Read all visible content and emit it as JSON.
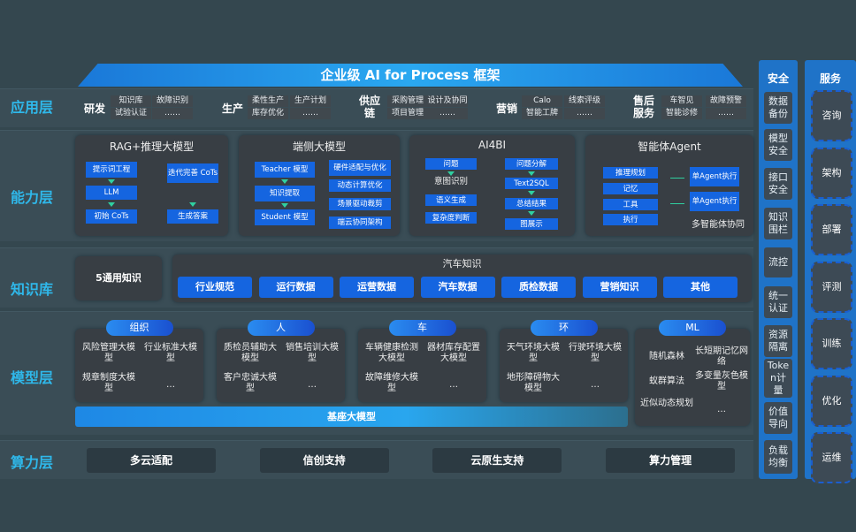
{
  "title": "企业级 AI for Process 框架",
  "layers": [
    "应用层",
    "能力层",
    "知识库",
    "模型层",
    "算力层"
  ],
  "app": [
    {
      "name": "研发",
      "items": [
        "知识库",
        "故障识别",
        "试验认证",
        "……"
      ]
    },
    {
      "name": "生产",
      "items": [
        "柔性生产",
        "生产计划",
        "库存优化",
        "……"
      ]
    },
    {
      "name": "供应链",
      "items": [
        "采购管理",
        "设计及协同",
        "项目管理",
        "……"
      ]
    },
    {
      "name": "营销",
      "items": [
        "Calo",
        "线索评级",
        "智能工牌",
        "……"
      ]
    },
    {
      "name": "售后服务",
      "items": [
        "车智见",
        "故障预警",
        "智能诊修",
        "……"
      ]
    }
  ],
  "capability": {
    "rag": {
      "title": "RAG+推理大模型",
      "items": [
        "提示词工程",
        "LLM",
        "初始 CoTs",
        "迭代完善 CoTs",
        "生成答案"
      ]
    },
    "edge": {
      "title": "端侧大模型",
      "left": [
        "Teacher 模型",
        "知识提取",
        "Student 模型"
      ],
      "right": [
        "硬件适配与优化",
        "动态计算优化",
        "场景驱动裁剪",
        "端云协同架构"
      ]
    },
    "ai4bi": {
      "title": "AI4BI",
      "left": [
        "问题",
        "意图识别",
        "语义生成",
        "复杂度判断"
      ],
      "right": [
        "问题分解",
        "Text2SQL",
        "总结结果",
        "图展示"
      ]
    },
    "agent": {
      "title": "智能体Agent",
      "left": [
        "推理规划",
        "记忆",
        "工具",
        "执行"
      ],
      "right": [
        "单Agent执行",
        "单Agent执行"
      ],
      "footer": "多智能体协同"
    }
  },
  "knowledge": {
    "general": "5通用知识",
    "auto_title": "汽车知识",
    "items": [
      "行业规范",
      "运行数据",
      "运营数据",
      "汽车数据",
      "质检数据",
      "营销知识",
      "其他"
    ]
  },
  "models": [
    {
      "name": "组织",
      "items": [
        "风险管理大模型",
        "行业标准大模型",
        "规章制度大模型",
        "…"
      ]
    },
    {
      "name": "人",
      "items": [
        "质检员辅助大模型",
        "销售培训大模型",
        "客户忠诚大模型",
        "…"
      ]
    },
    {
      "name": "车",
      "items": [
        "车辆健康检测大模型",
        "器材库存配置大模型",
        "故障维修大模型",
        "…"
      ]
    },
    {
      "name": "环",
      "items": [
        "天气环境大模型",
        "行驶环境大模型",
        "地形障碍物大模型",
        "…"
      ]
    },
    {
      "name": "ML",
      "items": [
        "随机森林",
        "长短期记忆网络",
        "蚁群算法",
        "多变量灰色模型",
        "近似动态规划",
        "…"
      ]
    }
  ],
  "base_model": "基座大模型",
  "compute": [
    "多云适配",
    "信创支持",
    "云原生支持",
    "算力管理"
  ],
  "security": {
    "title": "安全",
    "items": [
      "数据备份",
      "模型安全",
      "接口安全",
      "知识围栏",
      "流控",
      "统一认证",
      "资源隔离",
      "Token计量",
      "价值导向",
      "负载均衡"
    ]
  },
  "service": {
    "title": "服务",
    "items": [
      "咨询",
      "架构",
      "部署",
      "评测",
      "训练",
      "优化",
      "运维"
    ]
  },
  "colors": {
    "accent": "#1565e0",
    "label": "#2fb8ea",
    "background": "#34474f"
  }
}
